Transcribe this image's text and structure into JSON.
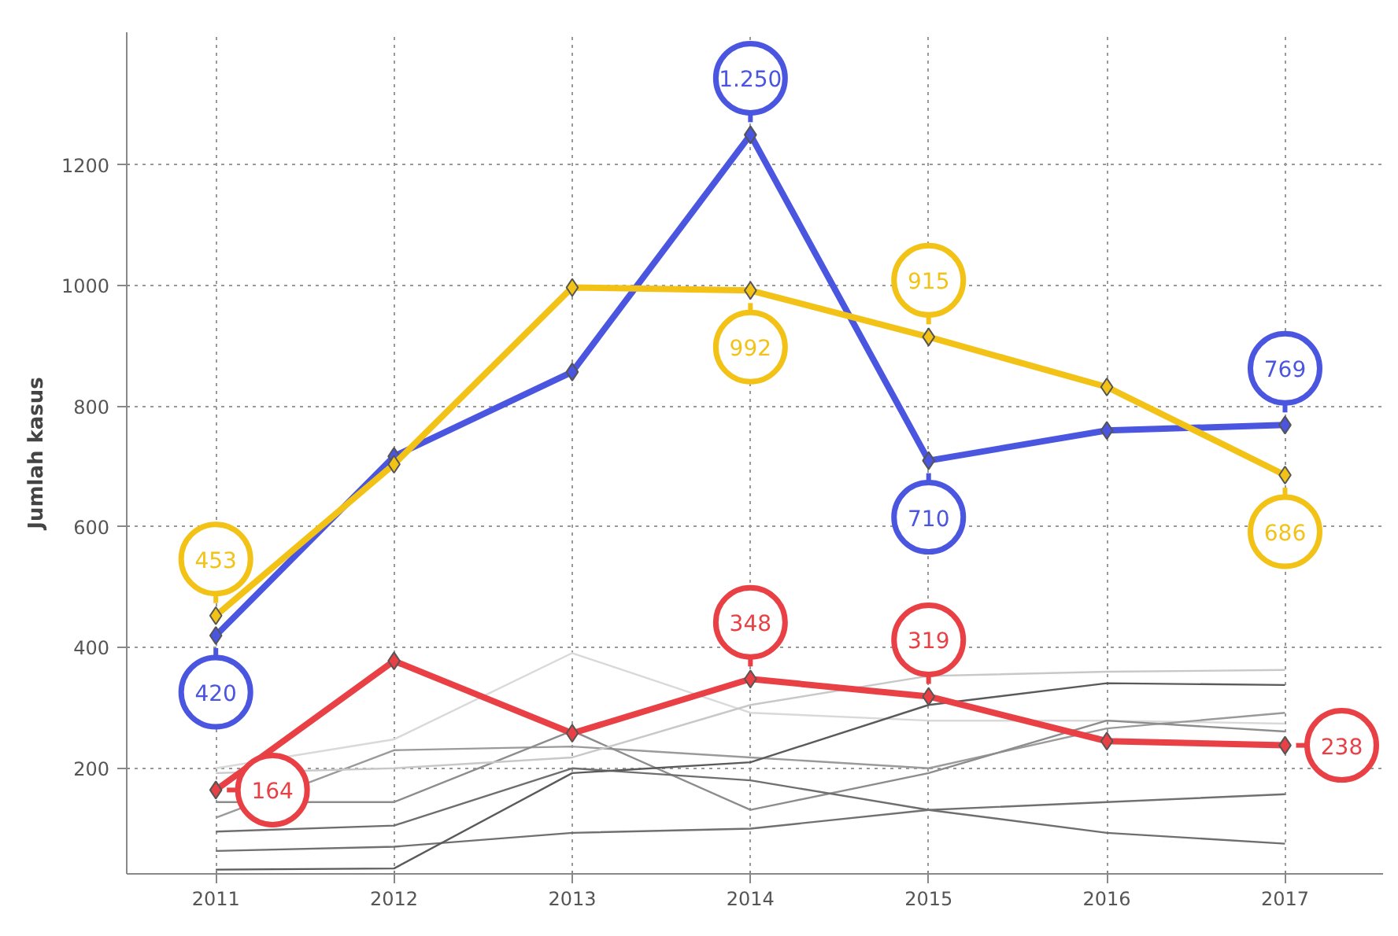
{
  "chart_data": {
    "type": "line",
    "ylabel": "Jumlah kasus",
    "x": [
      2011,
      2012,
      2013,
      2014,
      2015,
      2016,
      2017
    ],
    "xlim": [
      2010.5,
      2017.55
    ],
    "ylim": [
      25,
      1420
    ],
    "xticks": [
      2011,
      2012,
      2013,
      2014,
      2015,
      2016,
      2017
    ],
    "yticks": [
      200,
      400,
      600,
      800,
      1000,
      1200
    ],
    "grid": true,
    "series": [
      {
        "color": "#d9d9d9",
        "marker": "none",
        "values": [
          200,
          248,
          391,
          292,
          279,
          279,
          274
        ]
      },
      {
        "color": "#9a9a9a",
        "marker": "none",
        "values": [
          118,
          230,
          236,
          218,
          200,
          266,
          292
        ]
      },
      {
        "color": "#8c8c8c",
        "marker": "none",
        "values": [
          144,
          144,
          262,
          131,
          192,
          279,
          261
        ]
      },
      {
        "color": "#6e6e6e",
        "marker": "none",
        "values": [
          95,
          105,
          200,
          180,
          131,
          93,
          75
        ]
      },
      {
        "color": "#707070",
        "marker": "none",
        "values": [
          63,
          70,
          93,
          100,
          131,
          144,
          157
        ]
      },
      {
        "color": "#5a5a5a",
        "marker": "none",
        "values": [
          32,
          34,
          192,
          210,
          305,
          341,
          338
        ]
      },
      {
        "color": "#c8c8c8",
        "marker": "none",
        "values": [
          192,
          200,
          218,
          305,
          353,
          360,
          363
        ]
      },
      {
        "color": "#4a55e0",
        "marker": "diamond",
        "values": [
          420,
          717,
          857,
          1250,
          710,
          760,
          769
        ],
        "value_labels": [
          "420",
          null,
          null,
          "1.250",
          "710",
          null,
          "769"
        ]
      },
      {
        "color": "#f2c316",
        "marker": "diamond",
        "values": [
          453,
          704,
          997,
          992,
          915,
          832,
          686
        ],
        "value_labels": [
          "453",
          null,
          null,
          "992",
          "915",
          null,
          "686"
        ]
      },
      {
        "color": "#e84045",
        "marker": "diamond",
        "values": [
          164,
          378,
          258,
          348,
          319,
          245,
          238
        ],
        "value_labels": [
          "164",
          null,
          null,
          "348",
          "319",
          null,
          "238"
        ]
      }
    ]
  }
}
